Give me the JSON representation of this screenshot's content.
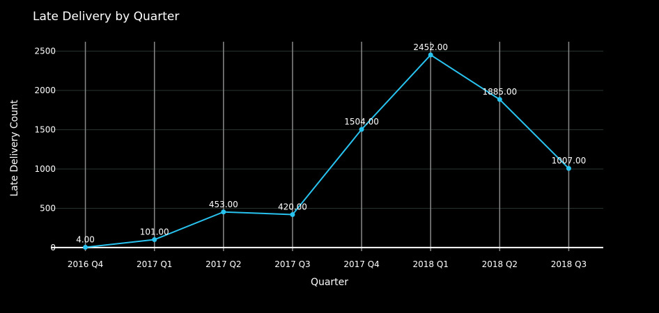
{
  "chart_data": {
    "type": "line",
    "title": "Late Delivery by Quarter",
    "xlabel": "Quarter",
    "ylabel": "Late Delivery Count",
    "categories": [
      "2016 Q4",
      "2017 Q1",
      "2017 Q2",
      "2017 Q3",
      "2017 Q4",
      "2018 Q1",
      "2018 Q2",
      "2018 Q3"
    ],
    "series": [
      {
        "name": "Late Delivery Count",
        "values": [
          4,
          101,
          453,
          420,
          1504,
          2452,
          1885,
          1007
        ],
        "labels": [
          "4.00",
          "101.00",
          "453.00",
          "420.00",
          "1504.00",
          "2452.00",
          "1885.00",
          "1007.00"
        ]
      }
    ],
    "yticks": [
      0,
      500,
      1000,
      1500,
      2000,
      2500
    ],
    "ylim": [
      -45,
      2620
    ],
    "grid": true,
    "legend": "none"
  },
  "colors": {
    "background": "#000000",
    "line": "#29c3f0",
    "horizontal_grid": "#26332e",
    "vertical_grid": "#8a8a8a",
    "zero_line": "#ffffff",
    "text": "#ffffff"
  }
}
